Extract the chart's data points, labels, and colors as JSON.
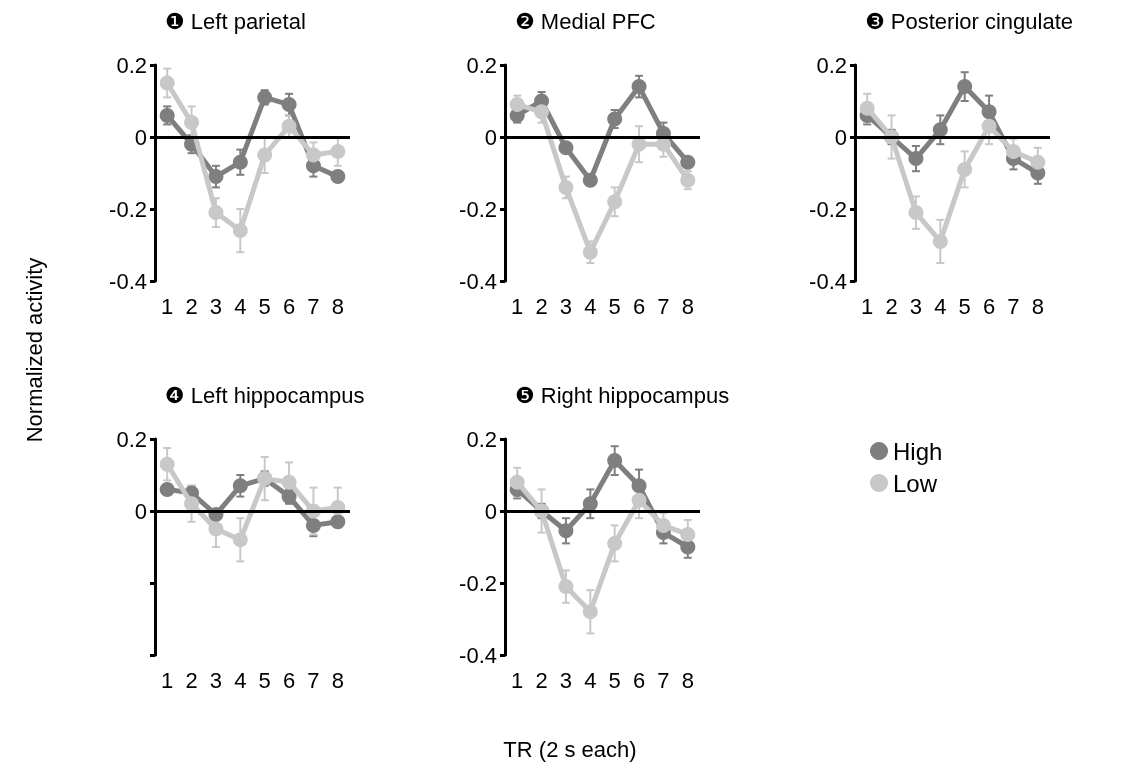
{
  "chart_data": [
    {
      "type": "line",
      "title": "❶ Left parietal",
      "ylabel": "Normalized activity",
      "categories": [
        "1",
        "2",
        "3",
        "4",
        "5",
        "6",
        "7",
        "8"
      ],
      "ylim": [
        -0.4,
        0.2
      ],
      "yticks": [
        -0.4,
        -0.2,
        0,
        0.2
      ],
      "grid": false,
      "legend": false,
      "marker": "circle",
      "line_style": "solid",
      "ref_lines": [
        {
          "axis": "y",
          "value": 0
        }
      ],
      "series": [
        {
          "color": "#7f7f7f",
          "values": [
            0.06,
            -0.02,
            -0.11,
            -0.07,
            0.11,
            0.09,
            -0.08,
            -0.11
          ],
          "errors": [
            0.025,
            0.025,
            0.03,
            0.035,
            0.02,
            0.03,
            0.03,
            0.01
          ]
        },
        {
          "color": "#c8c8c8",
          "values": [
            0.15,
            0.04,
            -0.21,
            -0.26,
            -0.05,
            0.03,
            -0.05,
            -0.04
          ],
          "errors": [
            0.04,
            0.045,
            0.04,
            0.06,
            0.05,
            0.03,
            0.035,
            0.04
          ]
        }
      ]
    },
    {
      "type": "line",
      "title": "❷ Medial PFC",
      "categories": [
        "1",
        "2",
        "3",
        "4",
        "5",
        "6",
        "7",
        "8"
      ],
      "ylim": [
        -0.4,
        0.2
      ],
      "yticks": [
        -0.4,
        -0.2,
        0,
        0.2
      ],
      "grid": false,
      "legend": false,
      "marker": "circle",
      "line_style": "solid",
      "ref_lines": [
        {
          "axis": "y",
          "value": 0
        }
      ],
      "series": [
        {
          "color": "#7f7f7f",
          "values": [
            0.06,
            0.1,
            -0.03,
            -0.12,
            0.05,
            0.14,
            0.01,
            -0.07
          ],
          "errors": [
            0.02,
            0.025,
            0.01,
            0.015,
            0.025,
            0.03,
            0.03,
            0.01
          ]
        },
        {
          "color": "#c8c8c8",
          "values": [
            0.09,
            0.07,
            -0.14,
            -0.32,
            -0.18,
            -0.02,
            -0.02,
            -0.12
          ],
          "errors": [
            0.025,
            0.03,
            0.03,
            0.03,
            0.04,
            0.05,
            0.035,
            0.025
          ]
        }
      ]
    },
    {
      "type": "line",
      "title": "❸ Posterior cingulate",
      "categories": [
        "1",
        "2",
        "3",
        "4",
        "5",
        "6",
        "7",
        "8"
      ],
      "ylim": [
        -0.4,
        0.2
      ],
      "yticks": [
        -0.4,
        -0.2,
        0,
        0.2
      ],
      "grid": false,
      "legend": false,
      "marker": "circle",
      "line_style": "solid",
      "ref_lines": [
        {
          "axis": "y",
          "value": 0
        }
      ],
      "series": [
        {
          "color": "#7f7f7f",
          "values": [
            0.06,
            0,
            -0.06,
            0.02,
            0.14,
            0.07,
            -0.06,
            -0.1
          ],
          "errors": [
            0.025,
            0.02,
            0.035,
            0.04,
            0.04,
            0.045,
            0.03,
            0.03
          ]
        },
        {
          "color": "#c8c8c8",
          "values": [
            0.08,
            0,
            -0.21,
            -0.29,
            -0.09,
            0.03,
            -0.04,
            -0.07
          ],
          "errors": [
            0.04,
            0.06,
            0.045,
            0.06,
            0.05,
            0.05,
            0.035,
            0.04
          ]
        }
      ]
    },
    {
      "type": "line",
      "title": "❹ Left hippocampus",
      "categories": [
        "1",
        "2",
        "3",
        "4",
        "5",
        "6",
        "7",
        "8"
      ],
      "ylim": [
        -0.4,
        0.2
      ],
      "yticks": [
        {
          "value": -0.4,
          "label": null
        },
        {
          "value": -0.2,
          "label": null
        },
        0,
        0.2
      ],
      "grid": false,
      "legend": false,
      "marker": "circle",
      "line_style": "solid",
      "ref_lines": [
        {
          "axis": "y",
          "value": 0
        }
      ],
      "series": [
        {
          "color": "#7f7f7f",
          "values": [
            0.06,
            0.05,
            -0.01,
            0.07,
            0.09,
            0.04,
            -0.04,
            -0.03
          ],
          "errors": [
            0.015,
            0.02,
            0.01,
            0.03,
            0.02,
            0.02,
            0.03,
            0.01
          ]
        },
        {
          "color": "#c8c8c8",
          "values": [
            0.13,
            0.02,
            -0.05,
            -0.08,
            0.09,
            0.08,
            0,
            0.01
          ],
          "errors": [
            0.045,
            0.05,
            0.05,
            0.06,
            0.06,
            0.055,
            0.065,
            0.055
          ]
        }
      ]
    },
    {
      "type": "line",
      "title": "❺ Right hippocampus",
      "xlabel": "TR (2 s each)",
      "categories": [
        "1",
        "2",
        "3",
        "4",
        "5",
        "6",
        "7",
        "8"
      ],
      "ylim": [
        -0.4,
        0.2
      ],
      "yticks": [
        -0.4,
        -0.2,
        0,
        0.2
      ],
      "grid": false,
      "legend": "right",
      "marker": "circle",
      "line_style": "solid",
      "ref_lines": [
        {
          "axis": "y",
          "value": 0
        }
      ],
      "series": [
        {
          "name": "High",
          "color": "#7f7f7f",
          "values": [
            0.06,
            0,
            -0.055,
            0.02,
            0.14,
            0.07,
            -0.06,
            -0.1
          ],
          "errors": [
            0.025,
            0.02,
            0.035,
            0.04,
            0.04,
            0.045,
            0.03,
            0.03
          ]
        },
        {
          "name": "Low",
          "color": "#c8c8c8",
          "values": [
            0.08,
            0,
            -0.21,
            -0.28,
            -0.09,
            0.03,
            -0.04,
            -0.065
          ],
          "errors": [
            0.04,
            0.06,
            0.045,
            0.06,
            0.05,
            0.05,
            0.035,
            0.04
          ]
        }
      ]
    }
  ]
}
